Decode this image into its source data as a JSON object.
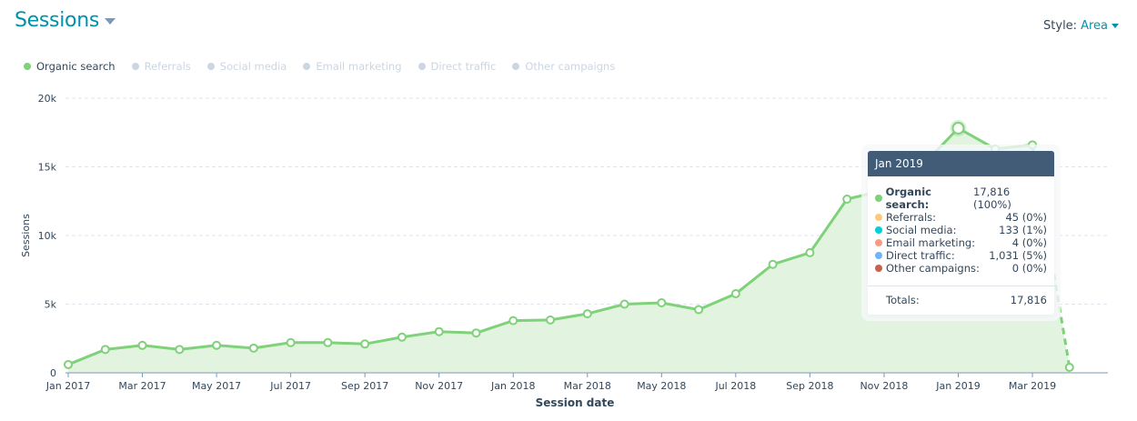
{
  "header": {
    "title": "Sessions",
    "style_label": "Style:",
    "style_value": "Area"
  },
  "legend": [
    {
      "label": "Organic search",
      "active": true,
      "color": "#7fd17a"
    },
    {
      "label": "Referrals",
      "active": false
    },
    {
      "label": "Social media",
      "active": false
    },
    {
      "label": "Email marketing",
      "active": false
    },
    {
      "label": "Direct traffic",
      "active": false
    },
    {
      "label": "Other campaigns",
      "active": false
    }
  ],
  "chart_data": {
    "type": "area",
    "xlabel": "Session date",
    "ylabel": "Sessions",
    "ylim": [
      0,
      20000
    ],
    "yticks": [
      "0",
      "5k",
      "10k",
      "15k",
      "20k"
    ],
    "ytick_values": [
      0,
      5000,
      10000,
      15000,
      20000
    ],
    "xtick_labels": [
      "Jan 2017",
      "Mar 2017",
      "May 2017",
      "Jul 2017",
      "Sep 2017",
      "Nov 2017",
      "Jan 2018",
      "Mar 2018",
      "May 2018",
      "Jul 2018",
      "Sep 2018",
      "Nov 2018",
      "Jan 2019",
      "Mar 2019"
    ],
    "x": [
      "Jan 2017",
      "Feb 2017",
      "Mar 2017",
      "Apr 2017",
      "May 2017",
      "Jun 2017",
      "Jul 2017",
      "Aug 2017",
      "Sep 2017",
      "Oct 2017",
      "Nov 2017",
      "Dec 2017",
      "Jan 2018",
      "Feb 2018",
      "Mar 2018",
      "Apr 2018",
      "May 2018",
      "Jun 2018",
      "Jul 2018",
      "Aug 2018",
      "Sep 2018",
      "Oct 2018",
      "Nov 2018",
      "Dec 2018",
      "Jan 2019",
      "Feb 2019",
      "Mar 2019",
      "Apr 2019"
    ],
    "series": [
      {
        "name": "Organic search",
        "color": "#7fd17a",
        "values": [
          600,
          1700,
          2000,
          1700,
          2000,
          1800,
          2200,
          2200,
          2100,
          2600,
          3000,
          2900,
          3800,
          3850,
          4300,
          5000,
          5100,
          4600,
          5760,
          7900,
          8750,
          12650,
          13300,
          15000,
          17816,
          16300,
          16600,
          400
        ]
      }
    ],
    "partial_last_point": true,
    "grid": true,
    "legend_position": "top-left"
  },
  "tooltip": {
    "title": "Jan 2019",
    "rows": [
      {
        "label": "Organic search:",
        "value": "17,816 (100%)",
        "color": "#7fd17a",
        "bold": true
      },
      {
        "label": "Referrals:",
        "value": "45 (0%)",
        "color": "#fdc97d"
      },
      {
        "label": "Social media:",
        "value": "133 (1%)",
        "color": "#00d0d8"
      },
      {
        "label": "Email marketing:",
        "value": "4 (0%)",
        "color": "#f99c82"
      },
      {
        "label": "Direct traffic:",
        "value": "1,031 (5%)",
        "color": "#6fb5f5"
      },
      {
        "label": "Other campaigns:",
        "value": "0 (0%)",
        "color": "#c8604a"
      }
    ],
    "totals_label": "Totals:",
    "totals_value": "17,816"
  }
}
